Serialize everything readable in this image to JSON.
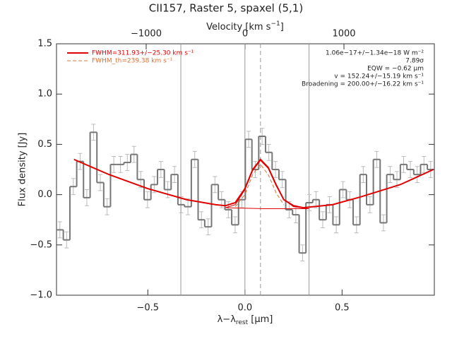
{
  "chart_data": {
    "type": "histogram",
    "title": "CII157, Raster 5, spaxel (5,1)",
    "ylabel": "Flux density [Jy]",
    "xlabel": [
      "λ−λ",
      "rest",
      " [μm]"
    ],
    "x2label": [
      "Velocity [km s",
      "−1",
      "]"
    ],
    "xlim": [
      -0.97,
      0.975
    ],
    "ylim": [
      -1.0,
      1.5
    ],
    "x2lim": [
      -1907,
      1914
    ],
    "xticks": [
      {
        "value": -0.5,
        "label": "−0.5"
      },
      {
        "value": 0,
        "label": "0.0"
      },
      {
        "value": 0.5,
        "label": "0.5"
      }
    ],
    "yticks": [
      {
        "value": -1,
        "label": "−1.0"
      },
      {
        "value": -0.5,
        "label": "−0.5"
      },
      {
        "value": 0,
        "label": "0.0"
      },
      {
        "value": 0.5,
        "label": "0.5"
      },
      {
        "value": 1,
        "label": "1.0"
      },
      {
        "value": 1.5,
        "label": "1.5"
      }
    ],
    "x2ticks": [
      {
        "value": -1000,
        "label": "−1000"
      },
      0,
      1000
    ],
    "bins": [
      -0.97,
      -0.935,
      -0.901,
      -0.866,
      -0.831,
      -0.797,
      -0.762,
      -0.727,
      -0.692,
      -0.658,
      -0.623,
      -0.588,
      -0.554,
      -0.519,
      -0.484,
      -0.45,
      -0.415,
      -0.38,
      -0.345,
      -0.311,
      -0.276,
      -0.241,
      -0.207,
      -0.172,
      -0.137,
      -0.103,
      -0.068,
      -0.033,
      0.002,
      0.036,
      0.071,
      0.106,
      0.14,
      0.175,
      0.21,
      0.245,
      0.279,
      0.314,
      0.349,
      0.383,
      0.418,
      0.453,
      0.487,
      0.522,
      0.557,
      0.592,
      0.626,
      0.661,
      0.696,
      0.73,
      0.765,
      0.8,
      0.834,
      0.869,
      0.904,
      0.939,
      0.973
    ],
    "values": [
      -0.35,
      -0.45,
      0.08,
      0.33,
      -0.03,
      0.62,
      0.12,
      -0.12,
      0.3,
      0.3,
      0.32,
      0.4,
      0.15,
      -0.05,
      0.1,
      0.25,
      0.05,
      0.2,
      -0.1,
      -0.12,
      0.35,
      -0.25,
      -0.32,
      0.1,
      -0.05,
      -0.15,
      -0.3,
      -0.05,
      0.55,
      0.25,
      0.58,
      0.42,
      0.25,
      0.15,
      -0.15,
      -0.2,
      -0.58,
      -0.08,
      -0.05,
      -0.25,
      -0.1,
      -0.3,
      0.05,
      -0.05,
      -0.3,
      0.2,
      -0.1,
      0.35,
      -0.28,
      0.2,
      0.15,
      0.3,
      0.25,
      0.2,
      0.3,
      0.25
    ],
    "error": 0.08,
    "color": "#777777",
    "error_color": "#bbbbbb",
    "vlines": [
      -0.33,
      0,
      0.33
    ],
    "center_line": 0.08,
    "fits": [
      {
        "name": "FWHM=311.93+/−25.30 km s⁻¹",
        "color": "#e00000",
        "width": 2,
        "dash": false,
        "x": [
          -0.88,
          -0.7,
          -0.5,
          -0.3,
          -0.15,
          -0.1,
          -0.05,
          0,
          0.04,
          0.08,
          0.12,
          0.16,
          0.2,
          0.25,
          0.3,
          0.45,
          0.6,
          0.8,
          0.97
        ],
        "values": [
          0.35,
          0.2,
          0.06,
          -0.05,
          -0.1,
          -0.11,
          -0.08,
          0.06,
          0.25,
          0.35,
          0.27,
          0.1,
          -0.05,
          -0.11,
          -0.13,
          -0.1,
          -0.02,
          0.1,
          0.25
        ]
      },
      {
        "color": "#e00000",
        "width": 1,
        "dash": false,
        "x": [
          -0.1,
          -0.05,
          0,
          0.04,
          0.08,
          0.12,
          0.16,
          0.2,
          0.25,
          0.33,
          0.1,
          -0.1
        ],
        "values": [
          -0.13,
          -0.1,
          0.05,
          0.24,
          0.34,
          0.26,
          0.09,
          -0.05,
          -0.12,
          -0.14,
          -0.14,
          -0.13
        ]
      },
      {
        "name": "FWHM_th=239.38 km s⁻¹",
        "color": "#e07030",
        "width": 1,
        "dash": true,
        "x": [
          -0.05,
          0,
          0.04,
          0.08,
          0.12,
          0.16,
          0.2
        ],
        "values": [
          -0.12,
          0.0,
          0.2,
          0.3,
          0.2,
          0.02,
          -0.1
        ]
      }
    ],
    "annotations": [
      "1.06e−17+/−1.34e−18 W m⁻²",
      "7.89σ",
      "EQW = −0.62 μm",
      "v = 152.24+/−15.19 km s⁻¹",
      "Broadening = 200.00+/−16.22 km s⁻¹"
    ]
  }
}
